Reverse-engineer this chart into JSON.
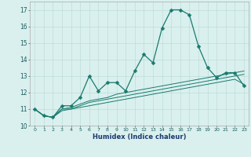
{
  "xlabel": "Humidex (Indice chaleur)",
  "x": [
    0,
    1,
    2,
    3,
    4,
    5,
    6,
    7,
    8,
    9,
    10,
    11,
    12,
    13,
    14,
    15,
    16,
    17,
    18,
    19,
    20,
    21,
    22,
    23
  ],
  "line1": [
    11.0,
    10.6,
    10.5,
    11.2,
    11.2,
    11.7,
    13.0,
    12.1,
    12.6,
    12.6,
    12.1,
    13.3,
    14.3,
    13.8,
    15.9,
    17.0,
    17.0,
    16.7,
    14.8,
    13.5,
    12.9,
    13.2,
    13.2,
    12.4
  ],
  "line2": [
    11.0,
    10.6,
    10.5,
    11.0,
    11.1,
    11.3,
    11.5,
    11.6,
    11.7,
    11.9,
    12.0,
    12.1,
    12.2,
    12.3,
    12.4,
    12.5,
    12.6,
    12.7,
    12.8,
    12.9,
    13.0,
    13.1,
    13.2,
    13.3
  ],
  "line3": [
    11.0,
    10.6,
    10.5,
    11.0,
    11.0,
    11.2,
    11.4,
    11.5,
    11.6,
    11.7,
    11.8,
    11.9,
    12.0,
    12.1,
    12.2,
    12.3,
    12.4,
    12.5,
    12.6,
    12.7,
    12.8,
    12.9,
    13.0,
    13.1
  ],
  "line4": [
    11.0,
    10.6,
    10.5,
    10.9,
    11.0,
    11.1,
    11.2,
    11.3,
    11.4,
    11.5,
    11.6,
    11.7,
    11.8,
    11.9,
    12.0,
    12.1,
    12.2,
    12.3,
    12.4,
    12.5,
    12.6,
    12.7,
    12.8,
    12.5
  ],
  "line_color": "#1a7a6e",
  "bg_color": "#d9f0ee",
  "grid_color": "#b8d8d4",
  "ylim": [
    10,
    17.5
  ],
  "yticks": [
    10,
    11,
    12,
    13,
    14,
    15,
    16,
    17
  ],
  "markersize": 2.5,
  "linewidth": 0.9,
  "thin_linewidth": 0.7
}
